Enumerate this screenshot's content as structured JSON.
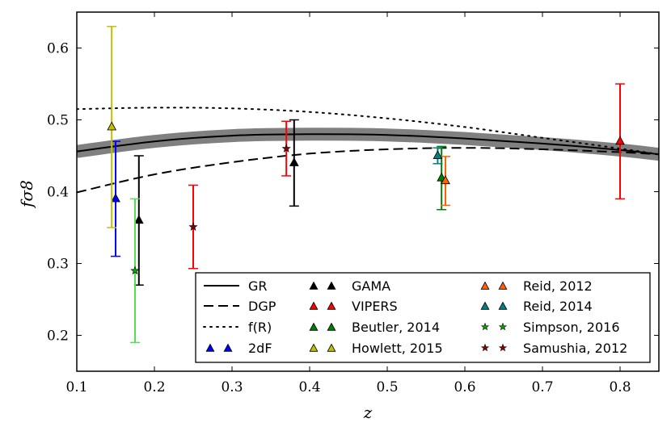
{
  "chart_data": {
    "type": "scatter",
    "title": "",
    "xlabel": "z",
    "ylabel": "fσ8",
    "xlim": [
      0.1,
      0.85
    ],
    "ylim": [
      0.15,
      0.65
    ],
    "xticks": [
      "0.1",
      "0.2",
      "0.3",
      "0.4",
      "0.5",
      "0.6",
      "0.7",
      "0.8"
    ],
    "yticks": [
      "0.2",
      "0.3",
      "0.4",
      "0.5",
      "0.6"
    ],
    "grid": false,
    "legend_position": "bottom-right",
    "models": [
      {
        "name": "GR",
        "style": "solid",
        "color": "#000000",
        "band_color": "#808080",
        "x": [
          0.1,
          0.2,
          0.3,
          0.4,
          0.5,
          0.6,
          0.7,
          0.8,
          0.85
        ],
        "y": [
          0.456,
          0.47,
          0.478,
          0.48,
          0.479,
          0.474,
          0.467,
          0.458,
          0.452
        ]
      },
      {
        "name": "DGP",
        "style": "dashed",
        "color": "#000000",
        "x": [
          0.1,
          0.2,
          0.3,
          0.4,
          0.5,
          0.6,
          0.7,
          0.8,
          0.85
        ],
        "y": [
          0.399,
          0.424,
          0.441,
          0.453,
          0.459,
          0.461,
          0.459,
          0.455,
          0.452
        ]
      },
      {
        "name": "f(R)",
        "style": "dotted",
        "color": "#000000",
        "x": [
          0.1,
          0.2,
          0.3,
          0.4,
          0.5,
          0.6,
          0.7,
          0.8,
          0.85
        ],
        "y": [
          0.515,
          0.517,
          0.516,
          0.511,
          0.502,
          0.49,
          0.475,
          0.46,
          0.452
        ]
      }
    ],
    "series": [
      {
        "name": "2dF",
        "marker": "triangle",
        "color": "#0000ff",
        "points": [
          {
            "x": 0.15,
            "y": 0.39,
            "err_lo": 0.08,
            "err_hi": 0.08
          }
        ]
      },
      {
        "name": "GAMA",
        "marker": "triangle",
        "color": "#000000",
        "points": [
          {
            "x": 0.18,
            "y": 0.36,
            "err_lo": 0.09,
            "err_hi": 0.09
          },
          {
            "x": 0.38,
            "y": 0.44,
            "err_lo": 0.06,
            "err_hi": 0.06
          }
        ]
      },
      {
        "name": "VIPERS",
        "marker": "triangle",
        "color": "#ff0000",
        "points": [
          {
            "x": 0.8,
            "y": 0.47,
            "err_lo": 0.08,
            "err_hi": 0.08
          }
        ]
      },
      {
        "name": "Beutler, 2014",
        "marker": "triangle",
        "color": "#008000",
        "points": [
          {
            "x": 0.57,
            "y": 0.419,
            "err_lo": 0.044,
            "err_hi": 0.044
          }
        ]
      },
      {
        "name": "Howlett, 2015",
        "marker": "triangle",
        "color": "#c0c000",
        "points": [
          {
            "x": 0.145,
            "y": 0.49,
            "err_lo": 0.14,
            "err_hi": 0.14
          }
        ]
      },
      {
        "name": "Reid, 2012",
        "marker": "triangle",
        "color": "#ff6000",
        "points": [
          {
            "x": 0.575,
            "y": 0.415,
            "err_lo": 0.034,
            "err_hi": 0.034
          }
        ]
      },
      {
        "name": "Reid, 2014",
        "marker": "triangle",
        "color": "#008080",
        "points": [
          {
            "x": 0.565,
            "y": 0.45,
            "err_lo": 0.011,
            "err_hi": 0.011
          }
        ]
      },
      {
        "name": "Simpson, 2016",
        "marker": "star",
        "color": "#00aa00",
        "errcolor": "#55dd55",
        "points": [
          {
            "x": 0.175,
            "y": 0.29,
            "err_lo": 0.1,
            "err_hi": 0.1
          }
        ]
      },
      {
        "name": "Samushia, 2012",
        "marker": "star",
        "color": "#8b0000",
        "errcolor": "#ff0000",
        "points": [
          {
            "x": 0.25,
            "y": 0.351,
            "err_lo": 0.058,
            "err_hi": 0.058
          },
          {
            "x": 0.37,
            "y": 0.46,
            "err_lo": 0.038,
            "err_hi": 0.038
          }
        ]
      }
    ],
    "legend_columns": [
      [
        "GR",
        "DGP",
        "f(R)",
        "2dF"
      ],
      [
        "GAMA",
        "VIPERS",
        "Beutler, 2014",
        "Howlett, 2015"
      ],
      [
        "Reid, 2012",
        "Reid, 2014",
        "Simpson, 2016",
        "Samushia, 2012"
      ]
    ]
  }
}
